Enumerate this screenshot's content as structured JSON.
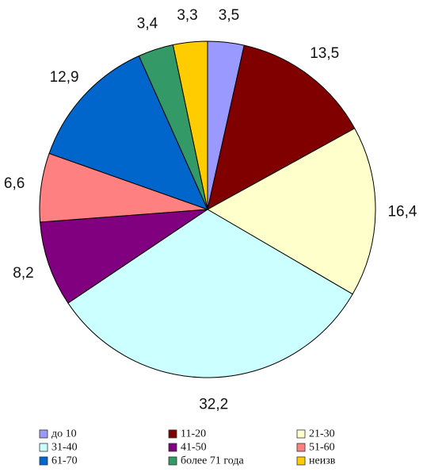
{
  "chart_data": {
    "type": "pie",
    "title": "",
    "categories": [
      "до 10",
      "11-20",
      "21-30",
      "31-40",
      "41-50",
      "51-60",
      "61-70",
      "более 71 года",
      "неизв"
    ],
    "values": [
      3.5,
      13.5,
      16.4,
      32.2,
      8.2,
      6.6,
      12.9,
      3.4,
      3.3
    ],
    "value_labels": [
      "3,5",
      "13,5",
      "16,4",
      "32,2",
      "8,2",
      "6,6",
      "12,9",
      "3,4",
      "3,3"
    ],
    "colors": [
      "#9999ff",
      "#800000",
      "#ffffcc",
      "#ccffff",
      "#800080",
      "#ff8080",
      "#0066cc",
      "#339966",
      "#ffcc00"
    ],
    "start": "12 o'clock",
    "direction": "clockwise",
    "legend": {
      "position": "bottom",
      "columns": 3
    }
  }
}
